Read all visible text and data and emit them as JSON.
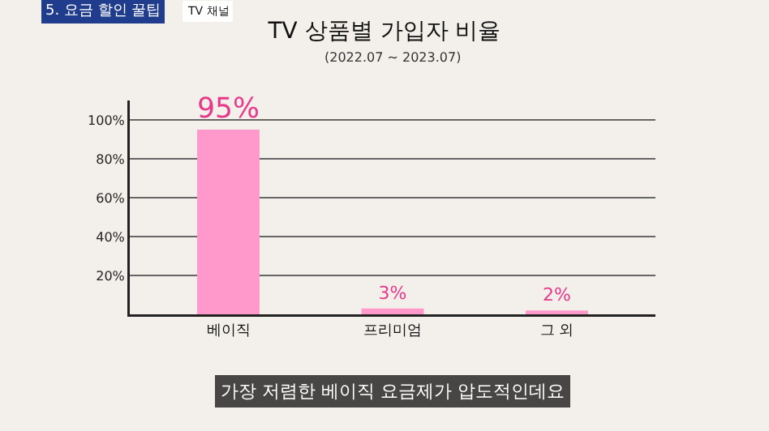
{
  "chart_data": {
    "type": "bar",
    "title": "TV 상품별 가입자 비율",
    "subtitle": "(2022.07 ~ 2023.07)",
    "categories": [
      "베이직",
      "프리미엄",
      "그 외"
    ],
    "values": [
      95,
      3,
      2
    ],
    "color": "#ff99cc",
    "value_labels": [
      "95%",
      "3%",
      "2%"
    ],
    "ylim": [
      0,
      110
    ],
    "yticks": [
      {
        "value": 20,
        "label": "20%"
      },
      {
        "value": 40,
        "label": "40%"
      },
      {
        "value": 60,
        "label": "60%"
      },
      {
        "value": 80,
        "label": "80%"
      },
      {
        "value": 100,
        "label": "100%"
      }
    ],
    "grid": "y",
    "annotations": [
      "5. 요금 할인 꿀팁",
      "TV 채널",
      "가장 저렴한 베이직 요금제가 압도적인데요"
    ]
  }
}
